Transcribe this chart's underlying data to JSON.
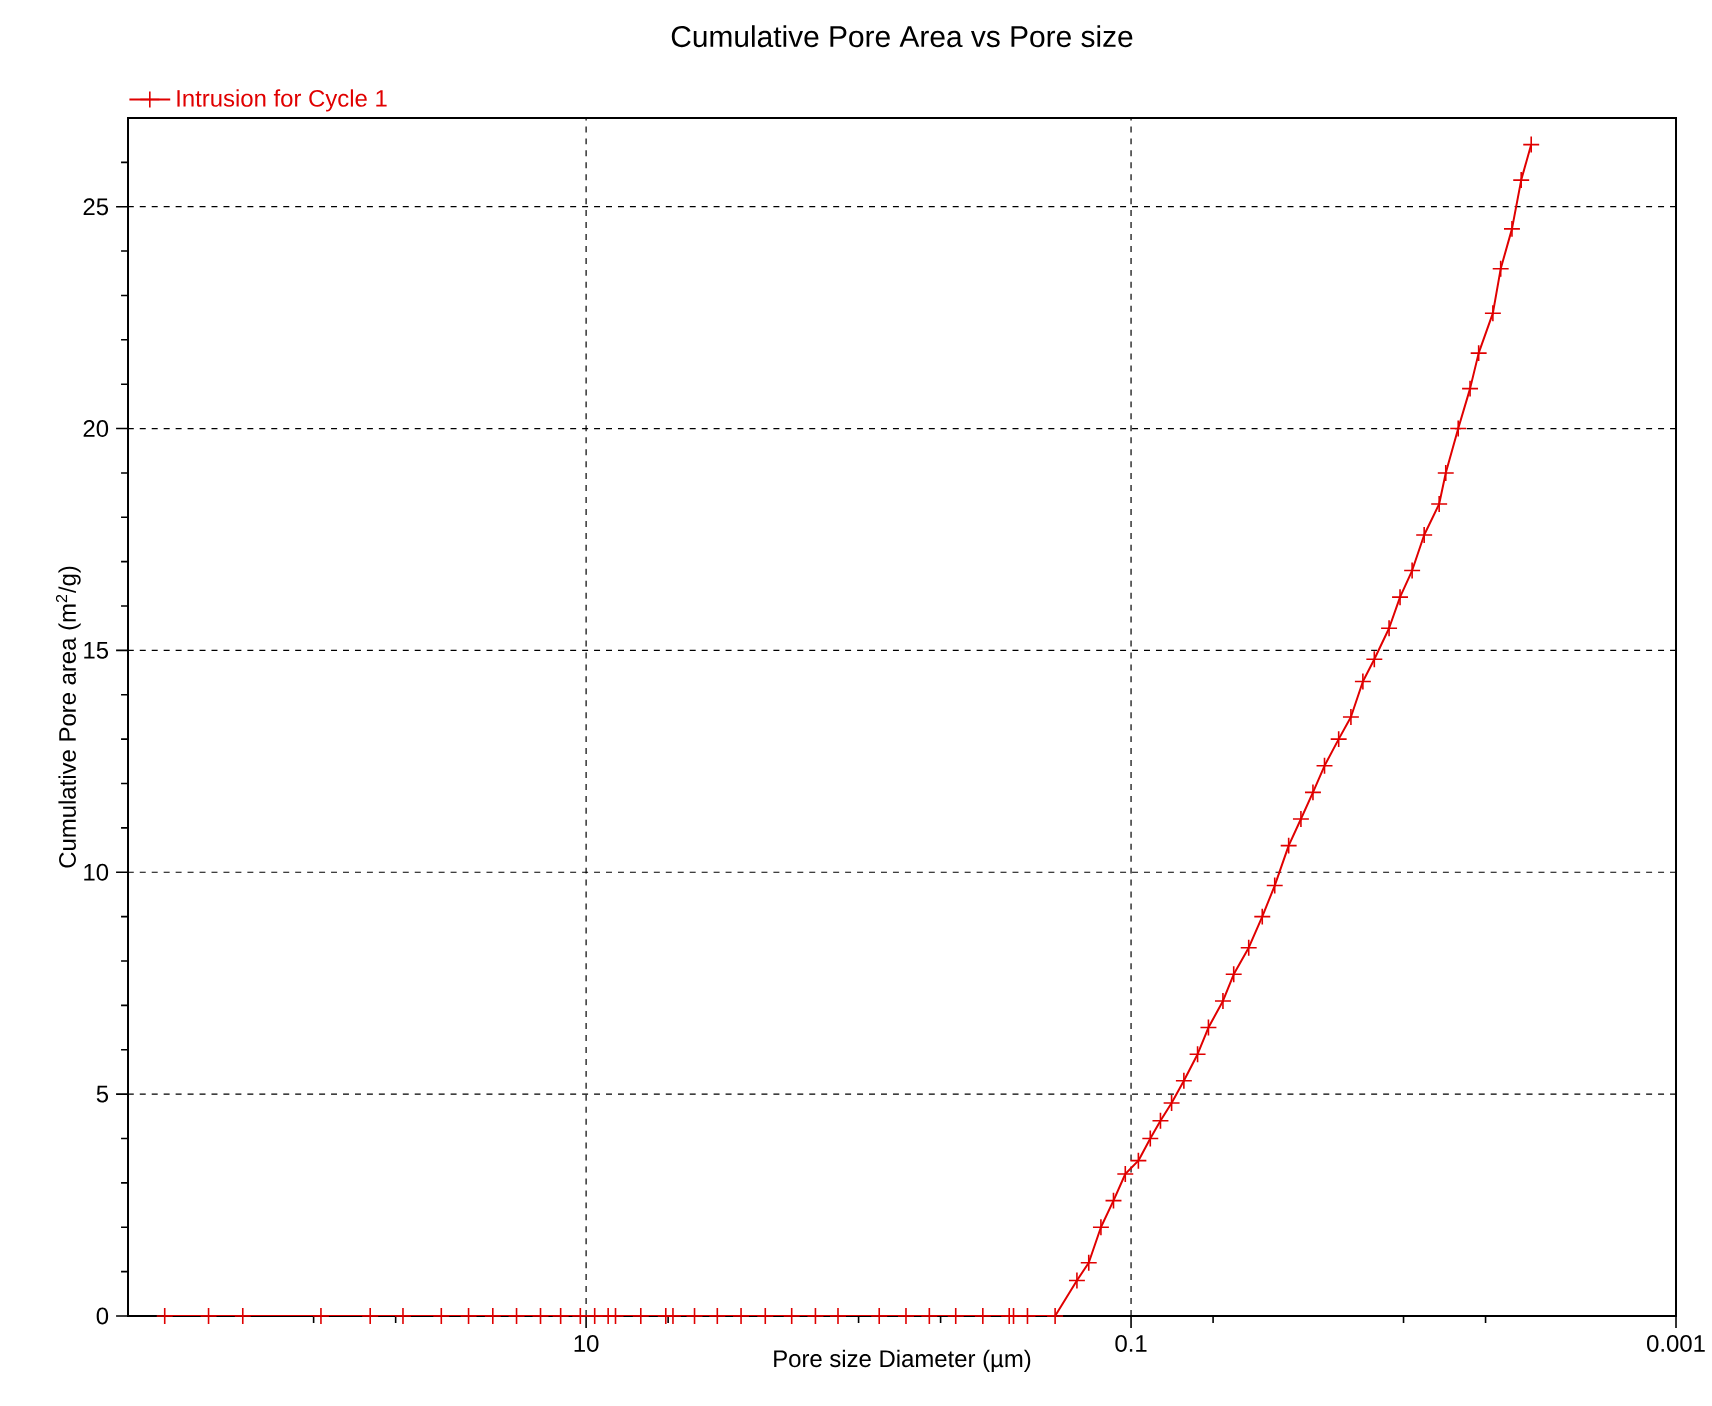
{
  "chart_data": {
    "type": "line",
    "title": "Cumulative Pore Area vs Pore size",
    "xlabel": "Pore size Diameter (µm)",
    "ylabel": "Cumulative Pore area (m$^{2}$/g)",
    "x": [
      352,
      243,
      182,
      94,
      62,
      47,
      34,
      27,
      22,
      18,
      14.7,
      12.4,
      10.5,
      9.3,
      8.3,
      7.8,
      6.3,
      5.1,
      4.8,
      4.0,
      3.3,
      2.7,
      2.2,
      1.76,
      1.44,
      1.19,
      0.84,
      0.67,
      0.55,
      0.44,
      0.35,
      0.28,
      0.27,
      0.24,
      0.19,
      0.158,
      0.143,
      0.129,
      0.116,
      0.105,
      0.094,
      0.085,
      0.078,
      0.071,
      0.064,
      0.057,
      0.052,
      0.046,
      0.042,
      0.037,
      0.033,
      0.0297,
      0.0264,
      0.0238,
      0.0215,
      0.0195,
      0.0173,
      0.0156,
      0.0141,
      0.0128,
      0.0113,
      0.0103,
      0.0093,
      0.0084,
      0.0074,
      0.007,
      0.0063,
      0.0057,
      0.0053,
      0.0047,
      0.0044,
      0.004,
      0.0037,
      0.0034
    ],
    "series": [
      {
        "name": "Intrusion for Cycle 1",
        "color": "#e00000",
        "values": [
          0,
          0,
          0,
          0,
          0,
          0,
          0,
          0,
          0,
          0,
          0,
          0,
          0,
          0,
          0,
          0,
          0,
          0,
          0,
          0,
          0,
          0,
          0,
          0,
          0,
          0,
          0,
          0,
          0,
          0,
          0,
          0,
          0,
          0,
          0,
          0.8,
          1.2,
          2.0,
          2.6,
          3.2,
          3.5,
          4.0,
          4.4,
          4.8,
          5.3,
          5.9,
          6.5,
          7.1,
          7.7,
          8.3,
          9.0,
          9.7,
          10.6,
          11.2,
          11.8,
          12.4,
          13.0,
          13.5,
          14.3,
          14.8,
          15.5,
          16.2,
          16.8,
          17.6,
          18.3,
          19.0,
          20.0,
          20.9,
          21.7,
          22.6,
          23.6,
          24.5,
          25.6,
          26.4
        ]
      }
    ],
    "log": "x",
    "xlim": [
      480,
      0.001
    ],
    "ylim": [
      0,
      27
    ],
    "xticks": [
      10,
      0.1,
      0.001,
      {
        "value": 100,
        "label": null
      },
      {
        "value": 50,
        "label": null
      },
      {
        "value": 5,
        "label": null
      },
      {
        "value": 1,
        "label": null
      },
      {
        "value": 0.5,
        "label": null
      },
      {
        "value": 0.05,
        "label": null
      },
      {
        "value": 0.01,
        "label": null
      },
      {
        "value": 0.005,
        "label": null
      }
    ],
    "yticks": [
      0,
      5,
      10,
      15,
      20,
      25,
      {
        "value": 1,
        "label": null
      },
      {
        "value": 2,
        "label": null
      },
      {
        "value": 3,
        "label": null
      },
      {
        "value": 4,
        "label": null
      },
      {
        "value": 6,
        "label": null
      },
      {
        "value": 7,
        "label": null
      },
      {
        "value": 8,
        "label": null
      },
      {
        "value": 9,
        "label": null
      },
      {
        "value": 11,
        "label": null
      },
      {
        "value": 12,
        "label": null
      },
      {
        "value": 13,
        "label": null
      },
      {
        "value": 14,
        "label": null
      },
      {
        "value": 16,
        "label": null
      },
      {
        "value": 17,
        "label": null
      },
      {
        "value": 18,
        "label": null
      },
      {
        "value": 19,
        "label": null
      },
      {
        "value": 21,
        "label": null
      },
      {
        "value": 22,
        "label": null
      },
      {
        "value": 23,
        "label": null
      },
      {
        "value": 24,
        "label": null
      },
      {
        "value": 26,
        "label": null
      }
    ],
    "grid": true,
    "legend": "top left",
    "marker": "cross"
  }
}
